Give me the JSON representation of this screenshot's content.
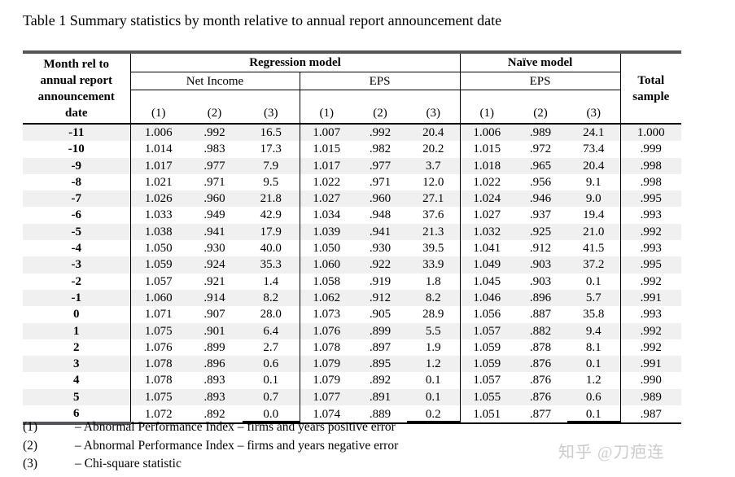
{
  "title": "Table 1 Summary statistics by month relative to annual report announcement date",
  "table": {
    "header": {
      "month_lines": [
        "Month rel to",
        "annual report",
        "announcement",
        "date"
      ],
      "regression_label": "Regression model",
      "naive_label": "Naïve model",
      "net_income_label": "Net Income",
      "eps_regression_label": "EPS",
      "eps_naive_label": "EPS",
      "total_lines": [
        "Total",
        "sample"
      ],
      "col_numbers": [
        "(1)",
        "(2)",
        "(3)"
      ]
    },
    "rows": [
      [
        "-11",
        "1.006",
        ".992",
        "16.5",
        "1.007",
        ".992",
        "20.4",
        "1.006",
        ".989",
        "24.1",
        "1.000"
      ],
      [
        "-10",
        "1.014",
        ".983",
        "17.3",
        "1.015",
        ".982",
        "20.2",
        "1.015",
        ".972",
        "73.4",
        ".999"
      ],
      [
        "-9",
        "1.017",
        ".977",
        "7.9",
        "1.017",
        ".977",
        "3.7",
        "1.018",
        ".965",
        "20.4",
        ".998"
      ],
      [
        "-8",
        "1.021",
        ".971",
        "9.5",
        "1.022",
        ".971",
        "12.0",
        "1.022",
        ".956",
        "9.1",
        ".998"
      ],
      [
        "-7",
        "1.026",
        ".960",
        "21.8",
        "1.027",
        ".960",
        "27.1",
        "1.024",
        ".946",
        "9.0",
        ".995"
      ],
      [
        "-6",
        "1.033",
        ".949",
        "42.9",
        "1.034",
        ".948",
        "37.6",
        "1.027",
        ".937",
        "19.4",
        ".993"
      ],
      [
        "-5",
        "1.038",
        ".941",
        "17.9",
        "1.039",
        ".941",
        "21.3",
        "1.032",
        ".925",
        "21.0",
        ".992"
      ],
      [
        "-4",
        "1.050",
        ".930",
        "40.0",
        "1.050",
        ".930",
        "39.5",
        "1.041",
        ".912",
        "41.5",
        ".993"
      ],
      [
        "-3",
        "1.059",
        ".924",
        "35.3",
        "1.060",
        ".922",
        "33.9",
        "1.049",
        ".903",
        "37.2",
        ".995"
      ],
      [
        "-2",
        "1.057",
        ".921",
        "1.4",
        "1.058",
        ".919",
        "1.8",
        "1.045",
        ".903",
        "0.1",
        ".992"
      ],
      [
        "-1",
        "1.060",
        ".914",
        "8.2",
        "1.062",
        ".912",
        "8.2",
        "1.046",
        ".896",
        "5.7",
        ".991"
      ],
      [
        "0",
        "1.071",
        ".907",
        "28.0",
        "1.073",
        ".905",
        "28.9",
        "1.056",
        ".887",
        "35.8",
        ".993"
      ],
      [
        "1",
        "1.075",
        ".901",
        "6.4",
        "1.076",
        ".899",
        "5.5",
        "1.057",
        ".882",
        "9.4",
        ".992"
      ],
      [
        "2",
        "1.076",
        ".899",
        "2.7",
        "1.078",
        ".897",
        "1.9",
        "1.059",
        ".878",
        "8.1",
        ".992"
      ],
      [
        "3",
        "1.078",
        ".896",
        "0.6",
        "1.079",
        ".895",
        "1.2",
        "1.059",
        ".876",
        "0.1",
        ".991"
      ],
      [
        "4",
        "1.078",
        ".893",
        "0.1",
        "1.079",
        ".892",
        "0.1",
        "1.057",
        ".876",
        "1.2",
        ".990"
      ],
      [
        "5",
        "1.075",
        ".893",
        "0.7",
        "1.077",
        ".891",
        "0.1",
        "1.055",
        ".876",
        "0.6",
        ".989"
      ],
      [
        "6",
        "1.072",
        ".892",
        "0.0",
        "1.074",
        ".889",
        "0.2",
        "1.051",
        ".877",
        "0.1",
        ".987"
      ]
    ]
  },
  "footnotes": [
    {
      "label": "(1)",
      "text": "– Abnormal Performance Index – firms and years positive error"
    },
    {
      "label": "(2)",
      "text": "– Abnormal Performance Index – firms and years negative error"
    },
    {
      "label": "(3)",
      "text": "– Chi-square statistic"
    }
  ],
  "watermark": {
    "text": "知乎 @刀疤连"
  },
  "colors": {
    "top_border": "#55565a",
    "rule": "#000000",
    "row_stripe": "#f0f0f0",
    "watermark_gray": "#cbcbcb"
  }
}
